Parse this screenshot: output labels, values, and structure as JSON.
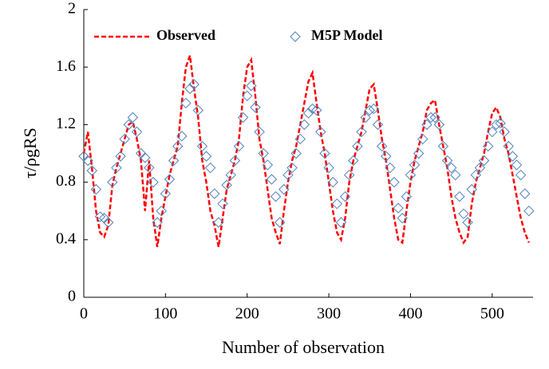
{
  "chart_data": {
    "type": "line",
    "x_label": "Number of observation",
    "y_label": "τ/ρgRS",
    "xlim": [
      0,
      550
    ],
    "ylim": [
      0,
      2
    ],
    "xticks": [
      0,
      100,
      200,
      300,
      400,
      500
    ],
    "yticks": [
      0,
      0.4,
      0.8,
      1.2,
      1.6,
      2
    ],
    "grid": false,
    "legend": "top",
    "x": [
      0,
      5,
      10,
      15,
      20,
      25,
      30,
      35,
      40,
      45,
      50,
      55,
      60,
      65,
      70,
      75,
      80,
      85,
      90,
      95,
      100,
      105,
      110,
      115,
      120,
      125,
      130,
      135,
      140,
      145,
      150,
      155,
      160,
      165,
      170,
      175,
      180,
      185,
      190,
      195,
      200,
      205,
      210,
      215,
      220,
      225,
      230,
      235,
      240,
      245,
      250,
      255,
      260,
      265,
      270,
      275,
      280,
      285,
      290,
      295,
      300,
      305,
      310,
      315,
      320,
      325,
      330,
      335,
      340,
      345,
      350,
      355,
      360,
      365,
      370,
      375,
      380,
      385,
      390,
      395,
      400,
      405,
      410,
      415,
      420,
      425,
      430,
      435,
      440,
      445,
      450,
      455,
      460,
      465,
      470,
      475,
      480,
      485,
      490,
      495,
      500,
      505,
      510,
      515,
      520,
      525,
      530,
      535,
      540,
      545
    ],
    "series": [
      {
        "name": "Observed",
        "color": "#ff0000",
        "style": "dashed",
        "values": [
          1.0,
          1.15,
          0.9,
          0.6,
          0.45,
          0.42,
          0.5,
          0.78,
          0.9,
          1.0,
          1.1,
          1.2,
          1.22,
          1.1,
          0.95,
          0.6,
          0.95,
          0.55,
          0.35,
          0.55,
          0.7,
          0.85,
          0.95,
          1.05,
          1.35,
          1.6,
          1.68,
          1.45,
          1.25,
          0.95,
          0.8,
          0.6,
          0.5,
          0.35,
          0.55,
          0.75,
          0.85,
          0.95,
          1.1,
          1.4,
          1.6,
          1.65,
          1.4,
          1.1,
          0.95,
          0.75,
          0.55,
          0.45,
          0.37,
          0.6,
          0.8,
          0.95,
          1.05,
          1.2,
          1.35,
          1.5,
          1.56,
          1.35,
          1.15,
          1.0,
          0.8,
          0.6,
          0.45,
          0.4,
          0.55,
          0.8,
          0.95,
          1.05,
          1.15,
          1.3,
          1.45,
          1.48,
          1.3,
          1.1,
          0.95,
          0.75,
          0.55,
          0.4,
          0.38,
          0.6,
          0.8,
          0.95,
          1.05,
          1.15,
          1.3,
          1.35,
          1.37,
          1.2,
          1.05,
          0.9,
          0.7,
          0.55,
          0.45,
          0.38,
          0.42,
          0.65,
          0.8,
          0.9,
          1.0,
          1.15,
          1.28,
          1.32,
          1.25,
          1.1,
          1.0,
          0.85,
          0.7,
          0.55,
          0.45,
          0.38
        ]
      },
      {
        "name": "M5P Model",
        "color": "#4f81bd",
        "style": "diamonds",
        "values": [
          0.98,
          0.95,
          0.88,
          0.75,
          0.56,
          0.55,
          0.52,
          0.8,
          0.9,
          0.98,
          1.1,
          1.2,
          1.25,
          1.15,
          1.0,
          0.97,
          0.9,
          0.8,
          0.52,
          0.6,
          0.72,
          0.82,
          0.95,
          1.05,
          1.12,
          1.35,
          1.45,
          1.48,
          1.3,
          1.05,
          0.98,
          0.9,
          0.72,
          0.52,
          0.65,
          0.78,
          0.85,
          0.95,
          1.05,
          1.25,
          1.4,
          1.47,
          1.32,
          1.15,
          1.0,
          0.92,
          0.82,
          0.7,
          0.52,
          0.75,
          0.85,
          0.9,
          1.0,
          1.1,
          1.2,
          1.28,
          1.31,
          1.3,
          1.15,
          1.0,
          0.9,
          0.8,
          0.65,
          0.52,
          0.7,
          0.85,
          0.95,
          1.05,
          1.15,
          1.25,
          1.3,
          1.31,
          1.2,
          1.05,
          0.98,
          0.9,
          0.8,
          0.62,
          0.55,
          0.7,
          0.85,
          0.92,
          1.0,
          1.1,
          1.2,
          1.25,
          1.25,
          1.2,
          1.05,
          0.95,
          0.9,
          0.85,
          0.7,
          0.58,
          0.52,
          0.75,
          0.85,
          0.9,
          0.95,
          1.05,
          1.15,
          1.2,
          1.21,
          1.15,
          1.05,
          0.98,
          0.92,
          0.85,
          0.72,
          0.6
        ]
      }
    ]
  }
}
